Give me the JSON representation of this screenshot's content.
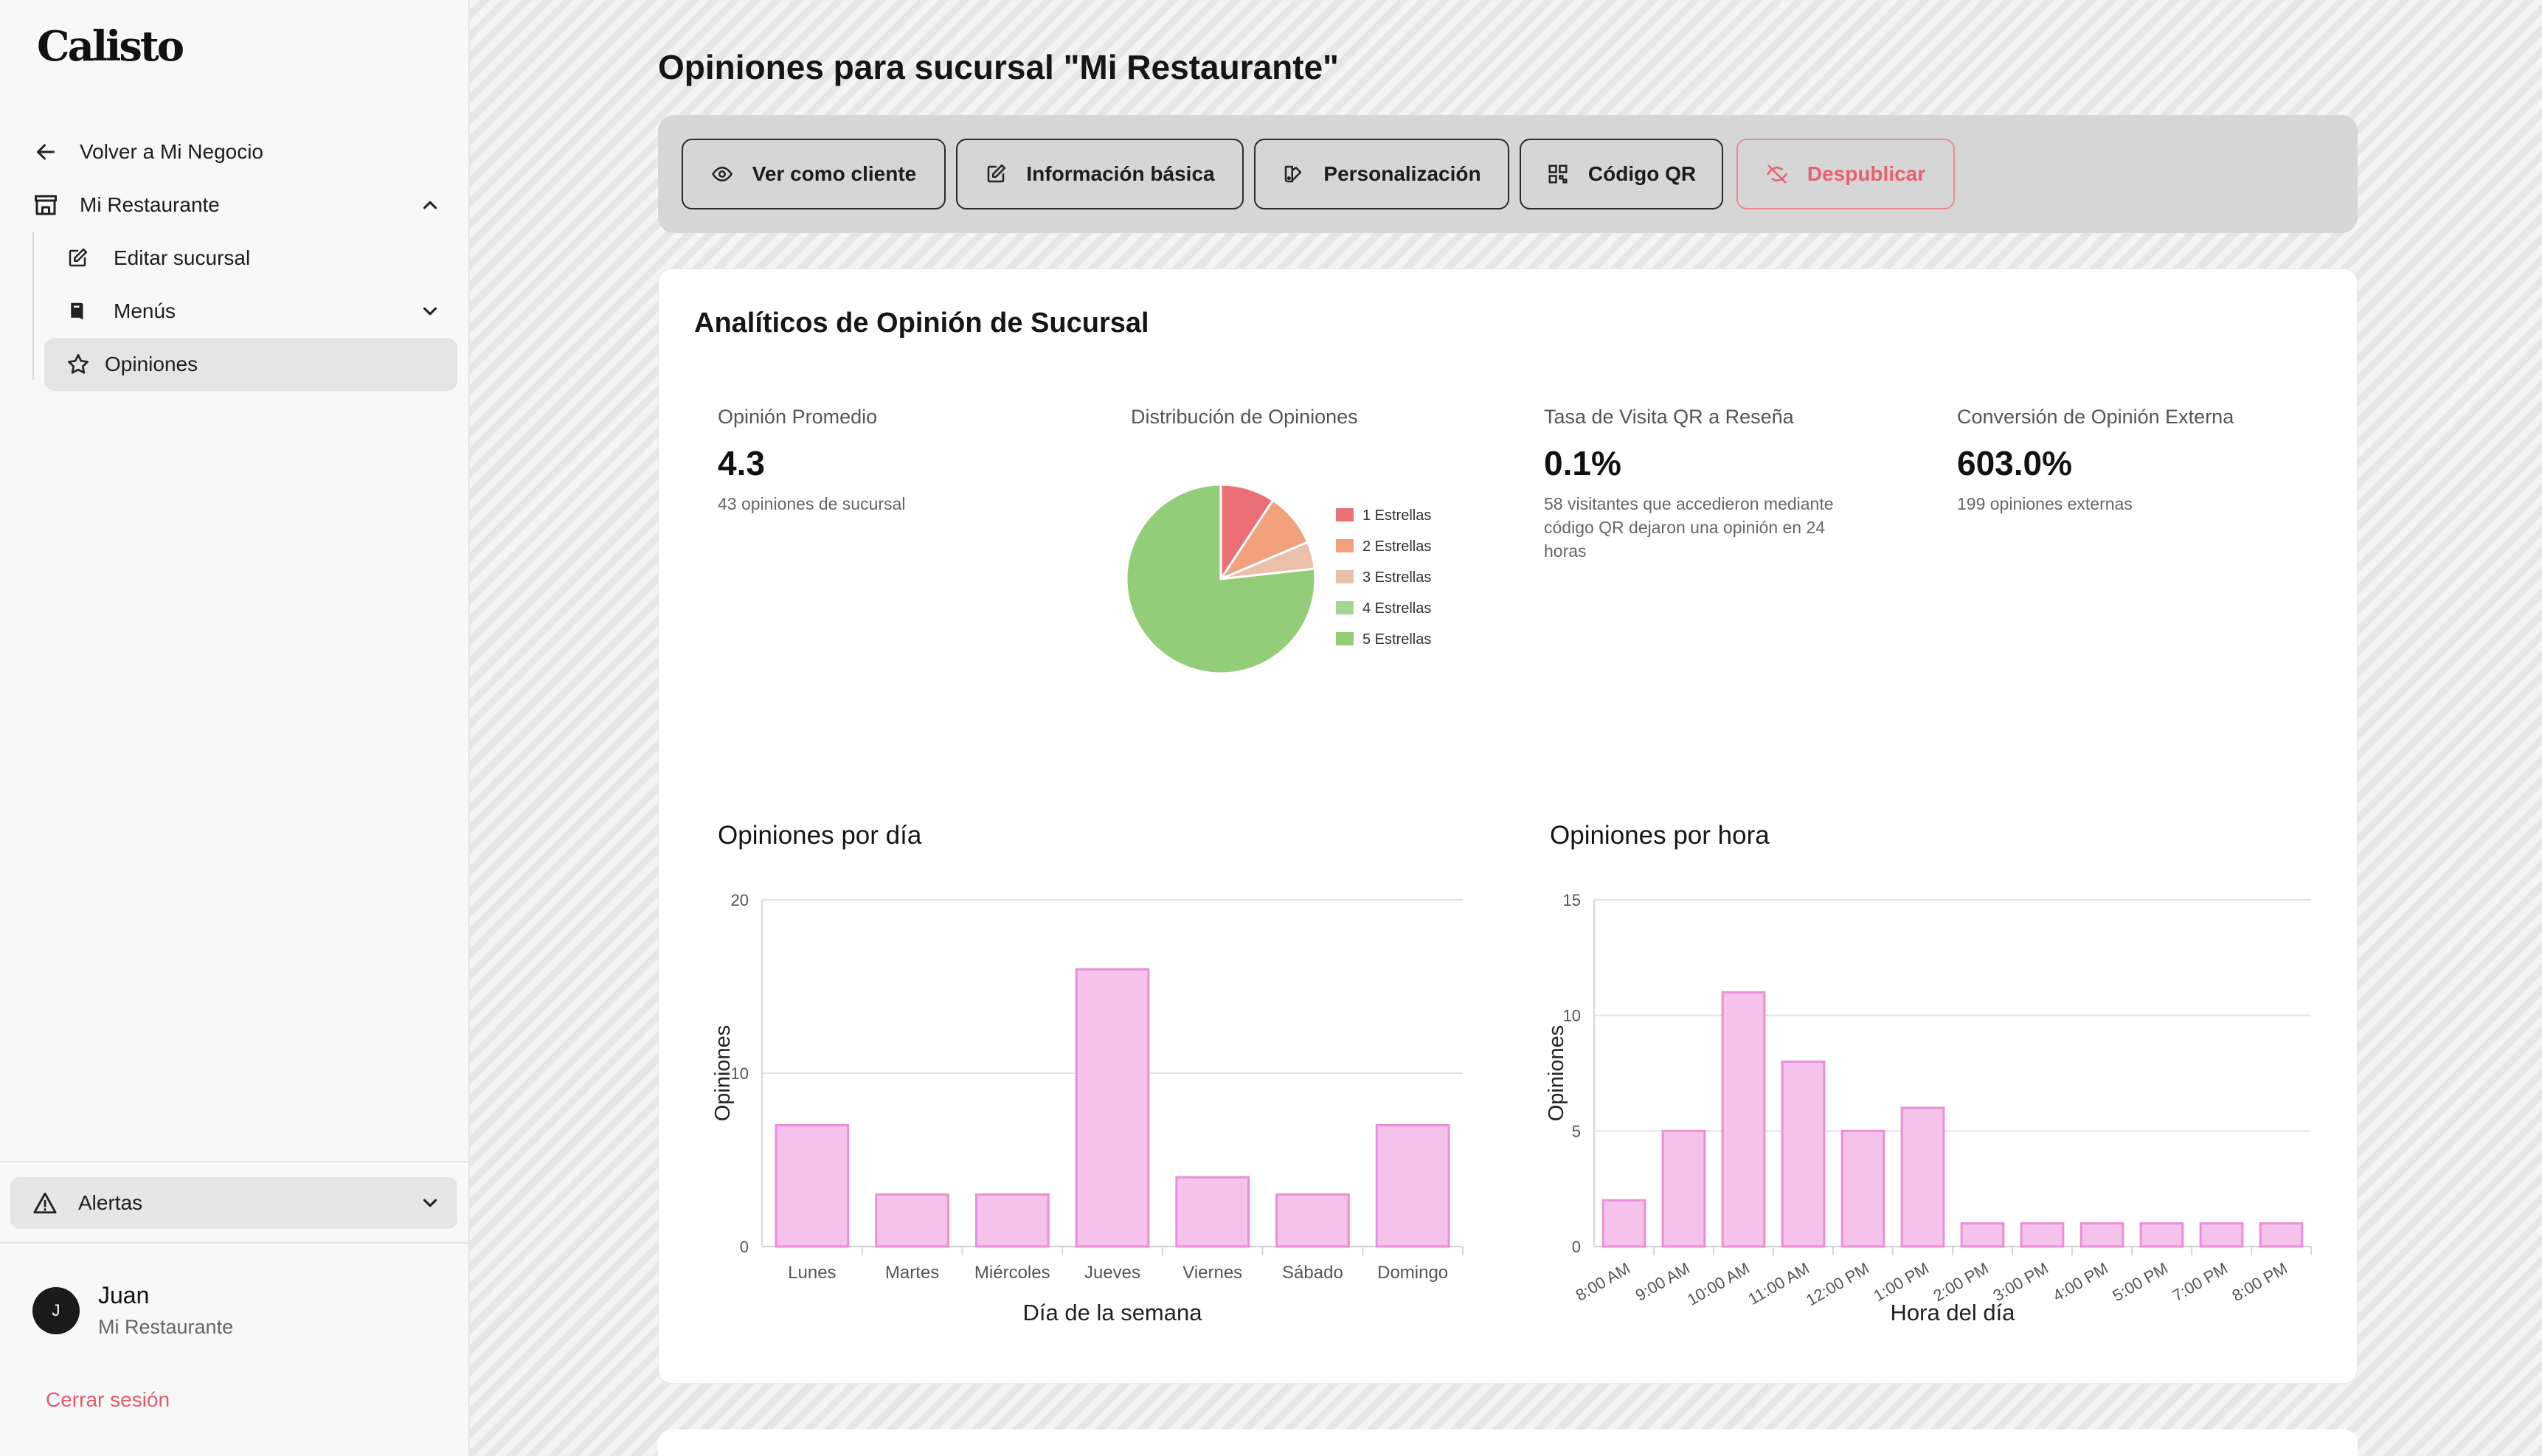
{
  "app": {
    "logo": "Calisto"
  },
  "sidebar": {
    "back_label": "Volver a Mi Negocio",
    "restaurant_label": "Mi Restaurante",
    "items": [
      {
        "label": "Editar sucursal",
        "icon": "edit-icon"
      },
      {
        "label": "Menús",
        "icon": "book-icon"
      },
      {
        "label": "Opiniones",
        "icon": "star-icon"
      }
    ],
    "alerts_label": "Alertas",
    "user": {
      "initial": "J",
      "name": "Juan",
      "business": "Mi Restaurante"
    },
    "logout_label": "Cerrar sesión"
  },
  "header": {
    "title": "Opiniones para sucursal \"Mi Restaurante\"",
    "buttons": [
      {
        "label": "Ver como cliente",
        "icon": "eye-icon"
      },
      {
        "label": "Información básica",
        "icon": "edit-icon"
      },
      {
        "label": "Personalización",
        "icon": "palette-icon"
      },
      {
        "label": "Código QR",
        "icon": "qr-icon"
      },
      {
        "label": "Despublicar",
        "icon": "eye-off-icon",
        "color": "#e8606f"
      }
    ]
  },
  "analytics": {
    "title": "Analíticos de Opinión de Sucursal",
    "avg": {
      "label": "Opinión Promedio",
      "value": "4.3",
      "desc": "43 opiniones de sucursal"
    },
    "distribution": {
      "label": "Distribución de Opiniones"
    },
    "qr": {
      "label": "Tasa de Visita QR a Reseña",
      "value": "0.1%",
      "desc_lines": [
        "58 visitantes que accedieron mediante",
        "código QR dejaron una opinión en 24",
        "horas"
      ]
    },
    "external": {
      "label": "Conversión de Opinión Externa",
      "value": "603.0%",
      "desc": "199 opiniones externas"
    }
  },
  "chart_data": [
    {
      "type": "pie",
      "title": "Distribución de Opiniones",
      "categories": [
        "1 Estrellas",
        "2 Estrellas",
        "3 Estrellas",
        "4 Estrellas",
        "5 Estrellas"
      ],
      "values": [
        4,
        4,
        2,
        0,
        33
      ],
      "colors": [
        "#ec6f76",
        "#f1a27c",
        "#e9c0aa",
        "#a6d78f",
        "#93cd77"
      ],
      "legend": "right"
    },
    {
      "type": "bar",
      "title": "Opiniones por día",
      "categories": [
        "Lunes",
        "Martes",
        "Miércoles",
        "Jueves",
        "Viernes",
        "Sábado",
        "Domingo"
      ],
      "values": [
        7,
        3,
        3,
        16,
        4,
        3,
        7
      ],
      "xlabel": "Día de la semana",
      "ylabel": "Opiniones",
      "ylim": [
        0,
        20
      ],
      "yticks": [
        0,
        10,
        20
      ],
      "grid": true,
      "bar_color": "#f4c2ea",
      "bar_border": "#ea8ed8"
    },
    {
      "type": "bar",
      "title": "Opiniones por hora",
      "categories": [
        "8:00 AM",
        "9:00 AM",
        "10:00 AM",
        "11:00 AM",
        "12:00 PM",
        "1:00 PM",
        "2:00 PM",
        "3:00 PM",
        "4:00 PM",
        "5:00 PM",
        "7:00 PM",
        "8:00 PM"
      ],
      "values": [
        2,
        5,
        11,
        8,
        5,
        6,
        1,
        1,
        1,
        1,
        1,
        1
      ],
      "xlabel": "Hora del día",
      "ylabel": "Opiniones",
      "ylim": [
        0,
        15
      ],
      "yticks": [
        0,
        5,
        10,
        15
      ],
      "grid": true,
      "bar_color": "#f4c2ea",
      "bar_border": "#ea8ed8"
    }
  ]
}
